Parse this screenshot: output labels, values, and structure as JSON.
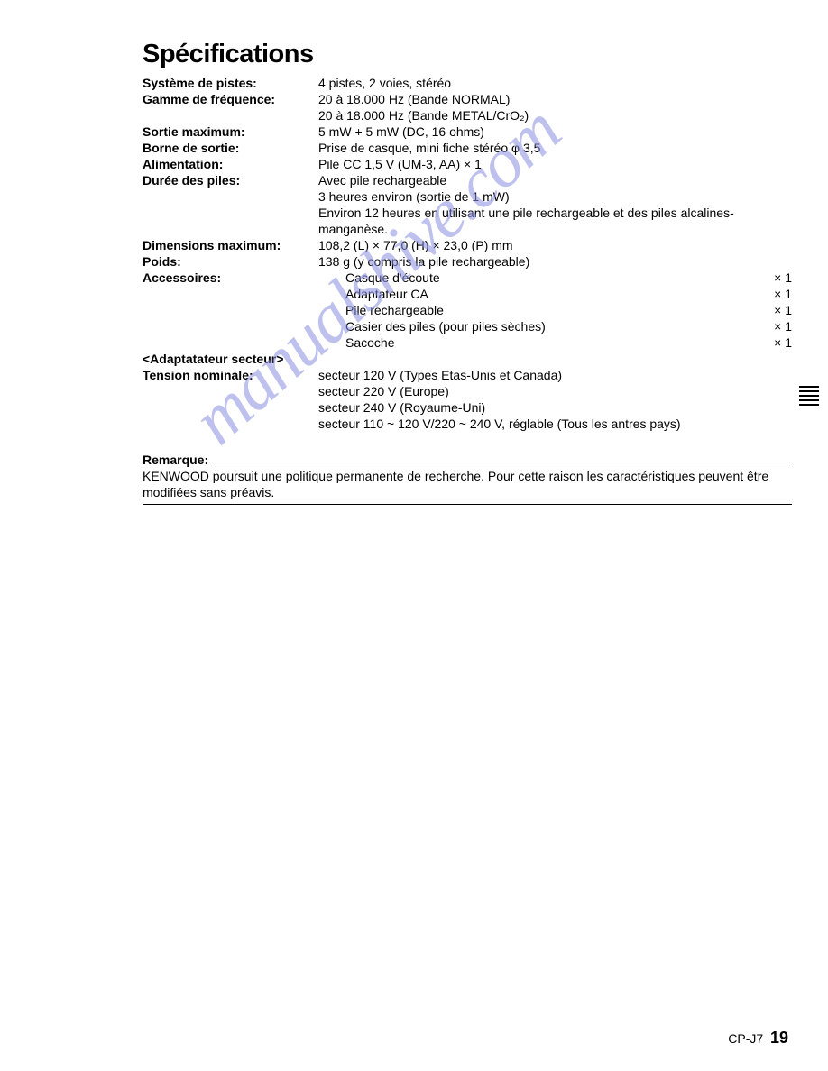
{
  "title": "Spécifications",
  "specs": [
    {
      "label": "Système de pistes:",
      "lines": [
        "4 pistes, 2 voies, stéréo"
      ]
    },
    {
      "label": "Gamme de fréquence:",
      "lines": [
        "20 à 18.000 Hz (Bande NORMAL)",
        "20 à 18.000 Hz (Bande METAL/CrO₂)"
      ]
    },
    {
      "label": "Sortie maximum:",
      "lines": [
        "5 mW + 5 mW (DC, 16 ohms)"
      ]
    },
    {
      "label": "Borne de sortie:",
      "lines": [
        "Prise de casque, mini fiche stéréo φ 3,5"
      ]
    },
    {
      "label": "Alimentation:",
      "lines": [
        "Pile CC 1,5 V (UM-3, AA) × 1"
      ]
    },
    {
      "label": "Durée des piles:",
      "lines": [
        "Avec pile rechargeable",
        "3 heures environ (sortie de 1 mW)",
        "Environ 12 heures en utilisant une pile rechargeable et des piles alcalines-manganèse."
      ]
    },
    {
      "label": "Dimensions maximum:",
      "lines": [
        "108,2 (L) × 77,0 (H) × 23,0 (P) mm"
      ]
    },
    {
      "label": "Poids:",
      "lines": [
        "138 g (y compris la pile rechargeable)"
      ]
    }
  ],
  "accessories_label": "Accessoires:",
  "accessories": [
    {
      "name": "Casque d'écoute",
      "qty": "× 1"
    },
    {
      "name": "Adaptateur CA",
      "qty": "× 1"
    },
    {
      "name": "Pile rechargeable",
      "qty": "× 1"
    },
    {
      "name": "Casier des piles (pour piles sèches)",
      "qty": "× 1"
    },
    {
      "name": "Sacoche",
      "qty": "× 1"
    }
  ],
  "adapter_header": "<Adaptatateur secteur>",
  "adapter_label": "Tension nominale:",
  "adapter_lines": [
    "secteur 120 V (Types Etas-Unis et Canada)",
    "secteur 220 V (Europe)",
    "secteur 240 V (Royaume-Uni)",
    "secteur 110 ~ 120 V/220 ~ 240 V, réglable (Tous les antres pays)"
  ],
  "remark_label": "Remarque:",
  "remark_text": "KENWOOD poursuit une politique permanente de recherche. Pour cette raison les caractéristiques peuvent être modifiées sans préavis.",
  "watermark": "manualshive.com",
  "footer_model": "CP-J7",
  "footer_page": "19"
}
